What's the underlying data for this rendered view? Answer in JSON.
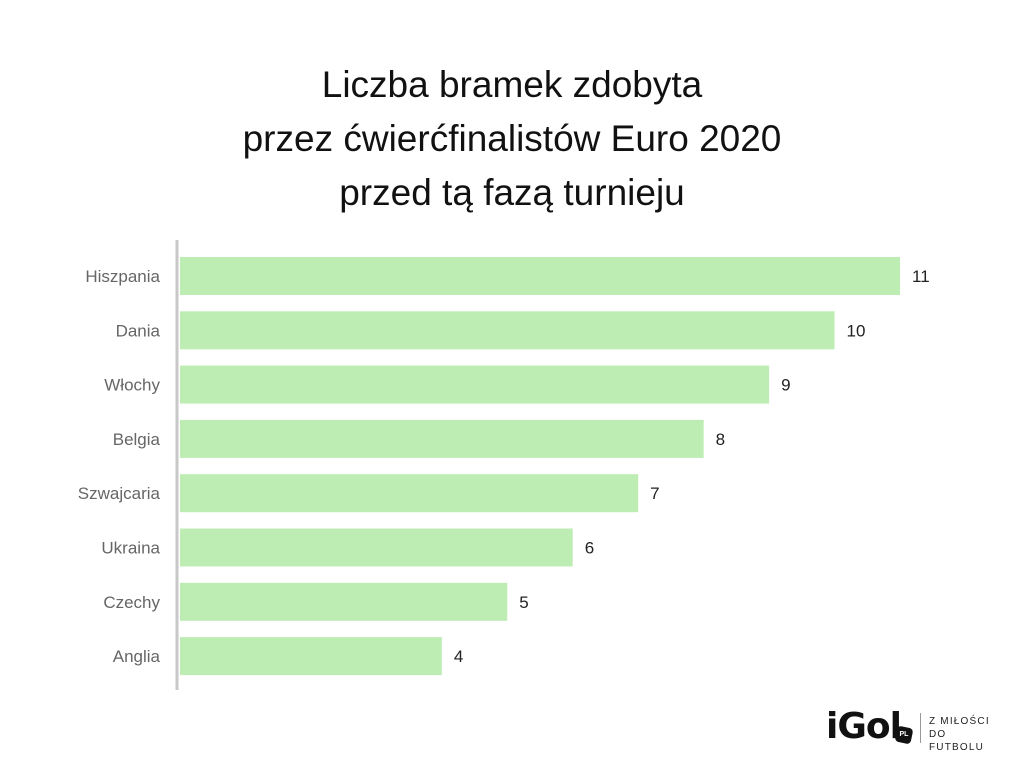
{
  "title_lines": [
    "Liczba bramek zdobyta",
    "przez ćwierćfinalistów Euro 2020",
    "przed tą fazą turnieju"
  ],
  "chart_data": {
    "type": "bar",
    "orientation": "horizontal",
    "title": "Liczba bramek zdobyta przez ćwierćfinalistów Euro 2020 przed tą fazą turnieju",
    "categories": [
      "Hiszpania",
      "Dania",
      "Włochy",
      "Belgia",
      "Szwajcaria",
      "Ukraina",
      "Czechy",
      "Anglia"
    ],
    "values": [
      11,
      10,
      9,
      8,
      7,
      6,
      5,
      4
    ],
    "xlabel": "",
    "ylabel": "",
    "xlim": [
      0,
      11
    ],
    "grid": false,
    "legend": "none",
    "bar_color": "#bdedb3",
    "data_labels": true
  },
  "brand": {
    "logo": "iGol",
    "badge": "PL",
    "tagline_1": "Z MIŁOŚCI",
    "tagline_2": "DO FUTBOLU"
  }
}
